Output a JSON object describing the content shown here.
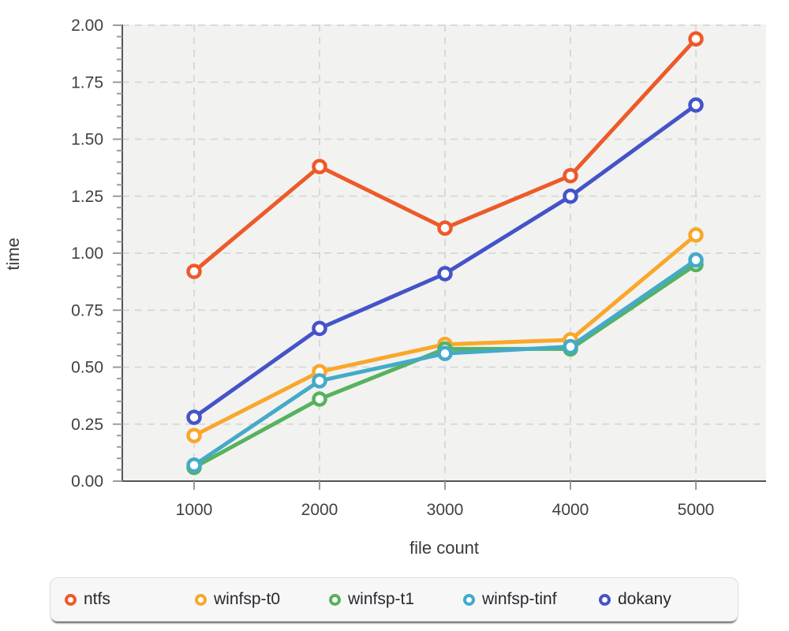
{
  "figure": {
    "y_axis_label": "time",
    "x_axis_label": "file count"
  },
  "chart_data": {
    "type": "line",
    "title": "",
    "xlabel": "file count",
    "ylabel": "time",
    "x": [
      1000,
      2000,
      3000,
      4000,
      5000
    ],
    "x_tick_labels": [
      "1000",
      "2000",
      "3000",
      "4000",
      "5000"
    ],
    "y_ticks": [
      0,
      0.25,
      0.5,
      0.75,
      1,
      1.25,
      1.5,
      1.75,
      2
    ],
    "y_tick_labels": [
      "0.00",
      "0.25",
      "0.50",
      "0.75",
      "1.00",
      "1.25",
      "1.50",
      "1.75",
      "2.00"
    ],
    "ylim": [
      0,
      2.0
    ],
    "xlim": [
      1000,
      5000
    ],
    "grid": true,
    "legend_position": "bottom",
    "plot_bg": "#f2f2f1",
    "grid_color": "#d9d9d9",
    "axis_color": "#555555",
    "tick_color": "#9a9a9a",
    "tick_label_color": "#414141",
    "marker": "open-circle",
    "series": [
      {
        "name": "ntfs",
        "color": "#ed5a29",
        "values": [
          0.92,
          1.38,
          1.11,
          1.34,
          1.94
        ]
      },
      {
        "name": "winfsp-t0",
        "color": "#f9a72b",
        "values": [
          0.2,
          0.48,
          0.6,
          0.62,
          1.08
        ]
      },
      {
        "name": "winfsp-t1",
        "color": "#57b25e",
        "values": [
          0.06,
          0.36,
          0.58,
          0.58,
          0.95
        ]
      },
      {
        "name": "winfsp-tinf",
        "color": "#44aac8",
        "values": [
          0.07,
          0.44,
          0.56,
          0.59,
          0.97
        ]
      },
      {
        "name": "dokany",
        "color": "#4553c9",
        "values": [
          0.28,
          0.67,
          0.91,
          1.25,
          1.65
        ]
      }
    ]
  }
}
